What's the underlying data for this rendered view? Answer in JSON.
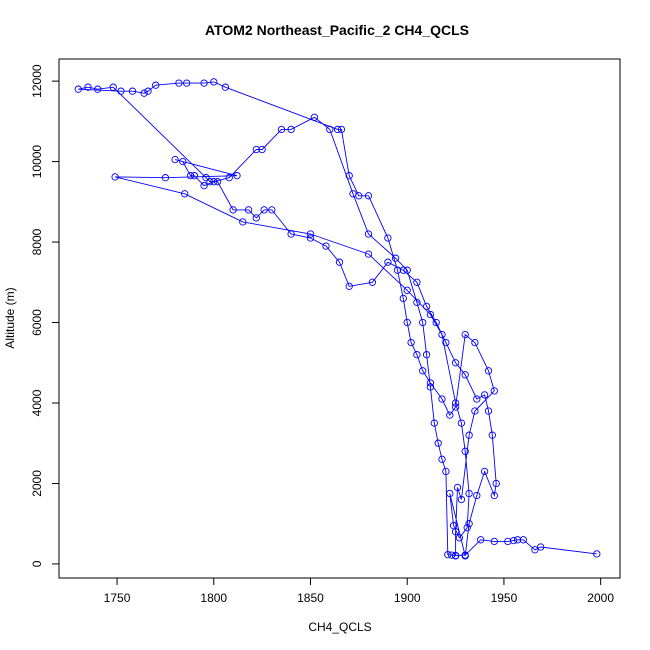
{
  "chart_data": {
    "type": "line",
    "title": "ATOM2 Northeast_Pacific_2 CH4_QCLS",
    "xlabel": "CH4_QCLS",
    "ylabel": "Altitude (m)",
    "xlim": [
      1720,
      2010
    ],
    "ylim": [
      -350,
      12550
    ],
    "x_ticks": [
      1750,
      1800,
      1850,
      1900,
      1950,
      2000
    ],
    "y_ticks": [
      0,
      2000,
      4000,
      6000,
      8000,
      10000,
      12000
    ],
    "grid": false,
    "legend": "none",
    "series": [
      {
        "color": "#0000ff",
        "marker": "open-circle",
        "points": [
          [
            1998,
            250
          ],
          [
            1969,
            420
          ],
          [
            1966,
            350
          ],
          [
            1960,
            600
          ],
          [
            1957,
            600
          ],
          [
            1955,
            580
          ],
          [
            1952,
            560
          ],
          [
            1945,
            560
          ],
          [
            1938,
            600
          ],
          [
            1930,
            220
          ],
          [
            1925,
            210
          ],
          [
            1923,
            220
          ],
          [
            1921,
            230
          ],
          [
            1920,
            2300
          ],
          [
            1918,
            2600
          ],
          [
            1916,
            3000
          ],
          [
            1914,
            3500
          ],
          [
            1912,
            4400
          ],
          [
            1910,
            5200
          ],
          [
            1908,
            6000
          ],
          [
            1905,
            6500
          ],
          [
            1900,
            7300
          ],
          [
            1894,
            7600
          ],
          [
            1880,
            8200
          ],
          [
            1872,
            9200
          ],
          [
            1860,
            10800
          ],
          [
            1852,
            11100
          ],
          [
            1840,
            10800
          ],
          [
            1835,
            10800
          ],
          [
            1825,
            10300
          ],
          [
            1822,
            10300
          ],
          [
            1808,
            9600
          ],
          [
            1800,
            9500
          ],
          [
            1795,
            9400
          ],
          [
            1790,
            9650
          ],
          [
            1788,
            9650
          ],
          [
            1784,
            10000
          ],
          [
            1780,
            10050
          ],
          [
            1812,
            9650
          ],
          [
            1775,
            9600
          ],
          [
            1749,
            9620
          ],
          [
            1785,
            9200
          ],
          [
            1815,
            8500
          ],
          [
            1850,
            8200
          ],
          [
            1880,
            7700
          ],
          [
            1900,
            6800
          ],
          [
            1912,
            6200
          ],
          [
            1918,
            5700
          ],
          [
            1925,
            4000
          ],
          [
            1928,
            3500
          ],
          [
            1930,
            2800
          ],
          [
            1932,
            1750
          ],
          [
            1931,
            900
          ],
          [
            1927,
            650
          ],
          [
            1924,
            950
          ],
          [
            1922,
            1750
          ],
          [
            1930,
            200
          ],
          [
            1932,
            1000
          ],
          [
            1936,
            1700
          ],
          [
            1940,
            2300
          ],
          [
            1945,
            1700
          ],
          [
            1946,
            2000
          ],
          [
            1944,
            3200
          ],
          [
            1942,
            3800
          ],
          [
            1940,
            4200
          ],
          [
            1936,
            4100
          ],
          [
            1930,
            4700
          ],
          [
            1925,
            5000
          ],
          [
            1920,
            5500
          ],
          [
            1915,
            6000
          ],
          [
            1910,
            6400
          ],
          [
            1905,
            7000
          ],
          [
            1898,
            7300
          ],
          [
            1890,
            7500
          ],
          [
            1882,
            7000
          ],
          [
            1870,
            6900
          ],
          [
            1865,
            7500
          ],
          [
            1858,
            7900
          ],
          [
            1850,
            8100
          ],
          [
            1840,
            8200
          ],
          [
            1830,
            8800
          ],
          [
            1826,
            8800
          ],
          [
            1822,
            8600
          ],
          [
            1818,
            8800
          ],
          [
            1810,
            8800
          ],
          [
            1802,
            9500
          ],
          [
            1798,
            9500
          ],
          [
            1796,
            9600
          ],
          [
            1748,
            11850
          ],
          [
            1740,
            11800
          ],
          [
            1735,
            11850
          ],
          [
            1730,
            11800
          ],
          [
            1752,
            11750
          ],
          [
            1758,
            11750
          ],
          [
            1764,
            11700
          ],
          [
            1766,
            11750
          ],
          [
            1770,
            11900
          ],
          [
            1782,
            11950
          ],
          [
            1786,
            11950
          ],
          [
            1795,
            11950
          ],
          [
            1800,
            11980
          ],
          [
            1806,
            11850
          ],
          [
            1864,
            10800
          ],
          [
            1866,
            10800
          ],
          [
            1870,
            9650
          ],
          [
            1875,
            9150
          ],
          [
            1880,
            9150
          ],
          [
            1890,
            8100
          ],
          [
            1895,
            7300
          ],
          [
            1898,
            6600
          ],
          [
            1900,
            6000
          ],
          [
            1902,
            5500
          ],
          [
            1905,
            5200
          ],
          [
            1908,
            4800
          ],
          [
            1912,
            4500
          ],
          [
            1918,
            4100
          ],
          [
            1922,
            3700
          ],
          [
            1925,
            3900
          ],
          [
            1930,
            5700
          ],
          [
            1935,
            5500
          ],
          [
            1942,
            4800
          ],
          [
            1945,
            4300
          ],
          [
            1935,
            3800
          ],
          [
            1932,
            3200
          ],
          [
            1928,
            1600
          ],
          [
            1926,
            1900
          ],
          [
            1925,
            800
          ],
          [
            1925,
            200
          ]
        ]
      }
    ]
  }
}
